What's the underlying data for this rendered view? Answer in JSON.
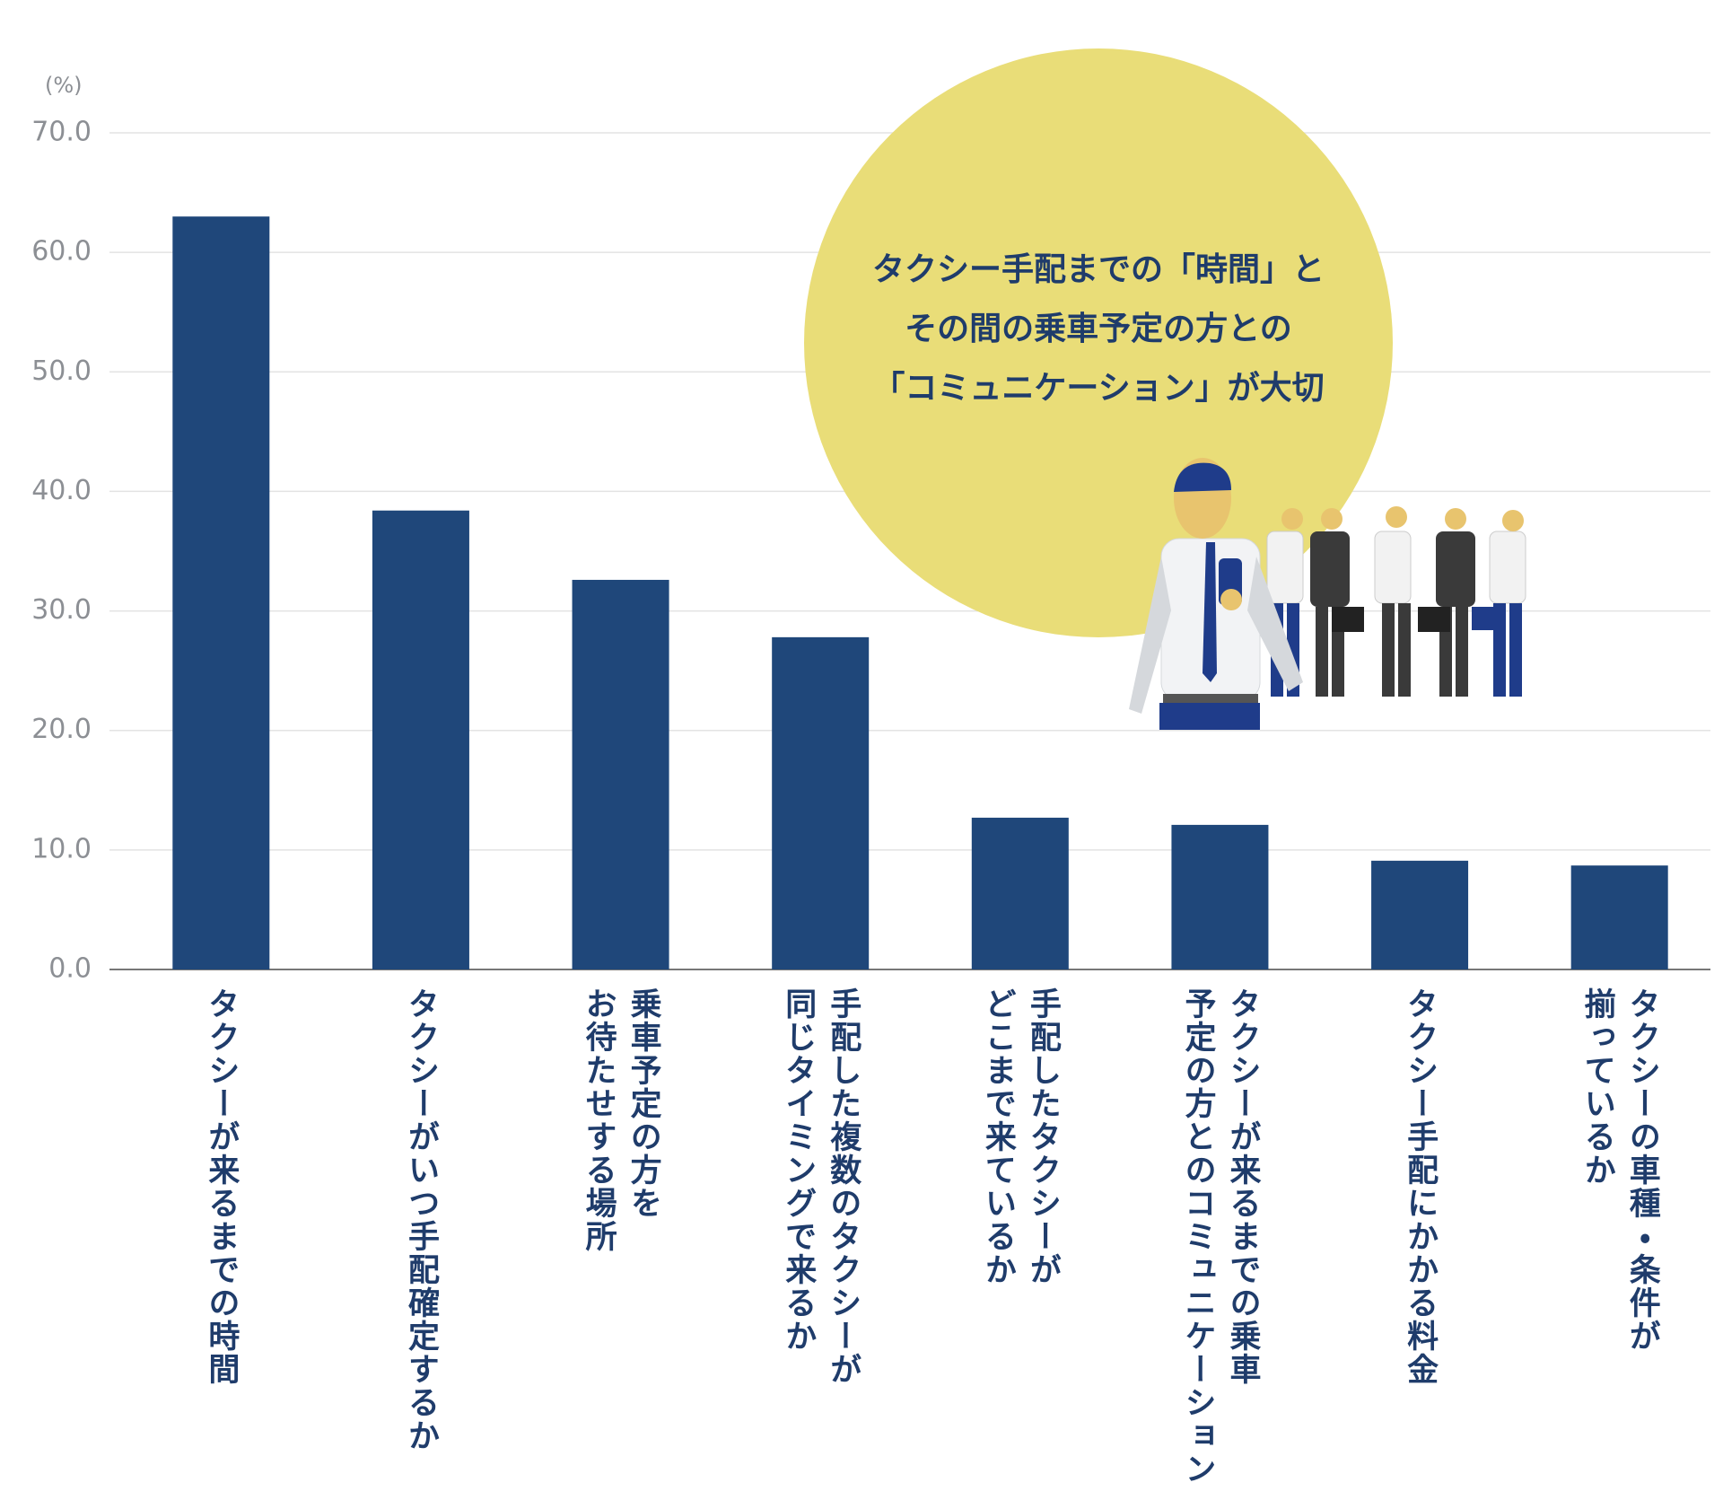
{
  "chart_data": {
    "type": "bar",
    "unit": "(%)",
    "annotation": "タクシー手配までの「時間」と\nその間の乗車予定の方との\n「コミュニケーション」が大切",
    "categories": [
      "タクシーが来るまでの時間",
      "タクシーがいつ手配確定するか",
      "乗車予定の方を\nお待たせする場所",
      "手配した複数のタクシーが\n同じタイミングで来るか",
      "手配したタクシーが\nどこまで来ているか",
      "タクシーが来るまでの乗車\n予定の方とのコミュニケーション",
      "タクシー手配にかかる料金",
      "タクシーの車種・条件が\n揃っているか"
    ],
    "values": [
      63.0,
      38.4,
      32.6,
      27.8,
      12.7,
      12.1,
      9.1,
      8.7
    ],
    "color": "#1f477a",
    "ylim": [
      0,
      70
    ],
    "yticks": [
      {
        "value": 0,
        "label": "0.0"
      },
      {
        "value": 10,
        "label": "10.0"
      },
      {
        "value": 20,
        "label": "20.0"
      },
      {
        "value": 30,
        "label": "30.0"
      },
      {
        "value": 40,
        "label": "40.0"
      },
      {
        "value": 50,
        "label": "50.0"
      },
      {
        "value": 60,
        "label": "60.0"
      },
      {
        "value": 70,
        "label": "70.0"
      }
    ],
    "grid": true
  }
}
